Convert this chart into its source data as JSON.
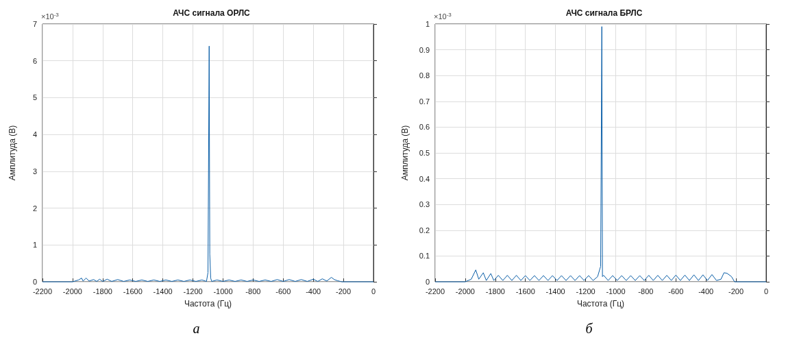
{
  "chart_data": [
    {
      "type": "line",
      "title": "АЧС сигнала ОРЛС",
      "xlabel": "Частота (Гц)",
      "ylabel": "Амплитуда (В)",
      "annotations": [
        "×10$^{-3}$",
        "а"
      ],
      "grid": true,
      "xlim": [
        -2200,
        0
      ],
      "xticks": [
        -2200,
        -2000,
        -1800,
        -1600,
        -1400,
        -1200,
        -1000,
        -800,
        -600,
        -400,
        -200,
        0
      ],
      "ylim": [
        0,
        7
      ],
      "yticks": [
        0,
        1,
        2,
        3,
        4,
        5,
        6,
        7
      ],
      "series": [
        {
          "color": "#0b5fa8",
          "x": [
            -2200,
            -2000,
            -1960,
            -1940,
            -1930,
            -1910,
            -1890,
            -1860,
            -1840,
            -1820,
            -1800,
            -1770,
            -1740,
            -1700,
            -1660,
            -1620,
            -1580,
            -1540,
            -1500,
            -1460,
            -1420,
            -1380,
            -1340,
            -1300,
            -1260,
            -1220,
            -1180,
            -1140,
            -1110,
            -1100,
            -1092,
            -1088,
            -1082,
            -1075,
            -1040,
            -1000,
            -960,
            -920,
            -880,
            -840,
            -800,
            -760,
            -720,
            -680,
            -640,
            -600,
            -560,
            -520,
            -480,
            -440,
            -400,
            -370,
            -340,
            -310,
            -280,
            -260,
            -240,
            -220,
            -210,
            0
          ],
          "values": [
            0,
            0,
            0.05,
            0.1,
            0.02,
            0.1,
            0.02,
            0.06,
            0.01,
            0.07,
            0.01,
            0.07,
            0.01,
            0.06,
            0.01,
            0.05,
            0.01,
            0.05,
            0.01,
            0.05,
            0.01,
            0.05,
            0.01,
            0.05,
            0.01,
            0.05,
            0.01,
            0.05,
            0.01,
            0.25,
            6.4,
            0.75,
            0.1,
            0.01,
            0.05,
            0.01,
            0.05,
            0.01,
            0.05,
            0.01,
            0.05,
            0.01,
            0.05,
            0.01,
            0.06,
            0.01,
            0.06,
            0.01,
            0.06,
            0.01,
            0.07,
            0.01,
            0.08,
            0.02,
            0.12,
            0.06,
            0.03,
            0.01,
            0,
            0
          ]
        }
      ]
    },
    {
      "type": "line",
      "title": "АЧС сигнала БРЛС",
      "xlabel": "Частота (Гц)",
      "ylabel": "Амплитуда (В)",
      "annotations": [
        "×10$^{-3}$",
        "б"
      ],
      "grid": true,
      "xlim": [
        -2200,
        0
      ],
      "xticks": [
        -2200,
        -2000,
        -1800,
        -1600,
        -1400,
        -1200,
        -1000,
        -800,
        -600,
        -400,
        -200,
        0
      ],
      "ylim": [
        0,
        1
      ],
      "yticks": [
        0,
        0.1,
        0.2,
        0.3,
        0.4,
        0.5,
        0.6,
        0.7,
        0.8,
        0.9,
        1
      ],
      "series": [
        {
          "color": "#0b5fa8",
          "x": [
            -2200,
            -2000,
            -1960,
            -1930,
            -1910,
            -1880,
            -1860,
            -1830,
            -1810,
            -1780,
            -1750,
            -1720,
            -1690,
            -1660,
            -1630,
            -1600,
            -1570,
            -1540,
            -1510,
            -1480,
            -1450,
            -1420,
            -1390,
            -1360,
            -1330,
            -1300,
            -1270,
            -1240,
            -1210,
            -1180,
            -1150,
            -1120,
            -1100,
            -1092,
            -1088,
            -1080,
            -1050,
            -1020,
            -990,
            -960,
            -930,
            -900,
            -870,
            -840,
            -810,
            -780,
            -750,
            -720,
            -690,
            -660,
            -630,
            -600,
            -570,
            -540,
            -510,
            -480,
            -450,
            -420,
            -390,
            -360,
            -330,
            -300,
            -280,
            -260,
            -230,
            -210,
            0
          ],
          "values": [
            0,
            0,
            0.01,
            0.046,
            0.01,
            0.035,
            0.005,
            0.032,
            0.005,
            0.025,
            0.005,
            0.025,
            0.005,
            0.025,
            0.005,
            0.024,
            0.005,
            0.024,
            0.005,
            0.024,
            0.005,
            0.024,
            0.005,
            0.024,
            0.005,
            0.024,
            0.005,
            0.024,
            0.005,
            0.024,
            0.005,
            0.02,
            0.06,
            0.99,
            0.02,
            0.025,
            0.005,
            0.024,
            0.005,
            0.024,
            0.005,
            0.024,
            0.005,
            0.024,
            0.005,
            0.025,
            0.005,
            0.025,
            0.005,
            0.025,
            0.005,
            0.026,
            0.005,
            0.026,
            0.005,
            0.027,
            0.005,
            0.027,
            0.005,
            0.028,
            0.005,
            0.01,
            0.035,
            0.033,
            0.02,
            0,
            0
          ]
        }
      ]
    }
  ]
}
